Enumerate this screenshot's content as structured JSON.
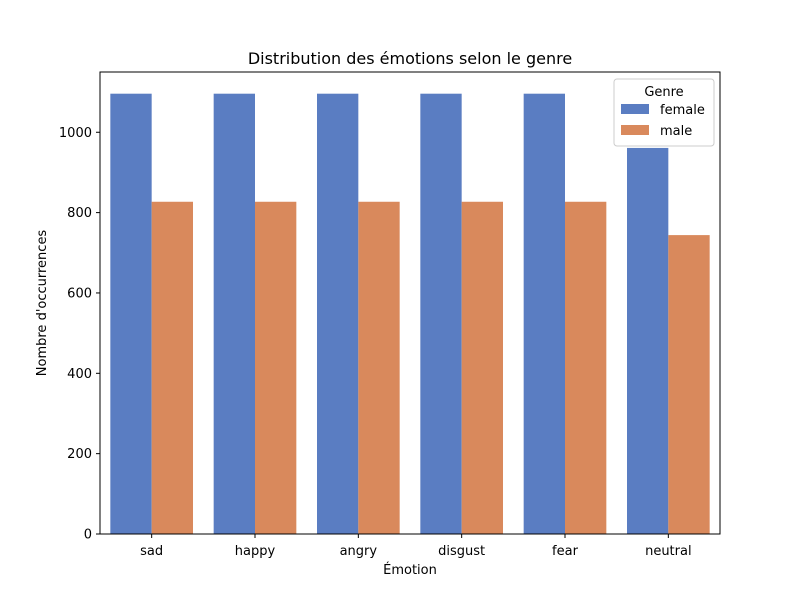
{
  "chart_data": {
    "type": "bar",
    "title": "Distribution des émotions selon le genre",
    "xlabel": "Émotion",
    "ylabel": "Nombre d'occurrences",
    "categories": [
      "sad",
      "happy",
      "angry",
      "disgust",
      "fear",
      "neutral"
    ],
    "series": [
      {
        "name": "female",
        "color": "#5a7dc2",
        "values": [
          1096,
          1096,
          1096,
          1096,
          1096,
          961
        ]
      },
      {
        "name": "male",
        "color": "#d9895c",
        "values": [
          827,
          827,
          827,
          827,
          827,
          744
        ]
      }
    ],
    "ylim": [
      0,
      1150
    ],
    "yticks": [
      0,
      200,
      400,
      600,
      800,
      1000
    ],
    "grid": false,
    "legend": {
      "title": "Genre",
      "position": "top-right"
    }
  }
}
